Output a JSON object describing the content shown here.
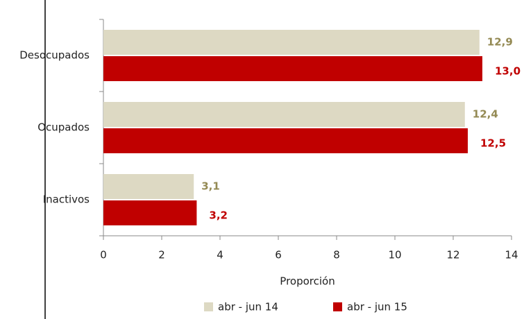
{
  "chart_data": {
    "type": "bar",
    "orientation": "horizontal",
    "categories": [
      "Desocupados",
      "Ocupados",
      "Inactivos"
    ],
    "series": [
      {
        "name": "abr - jun 14",
        "color": "#ddd9c3",
        "label_color": "#948a54",
        "values": [
          12.9,
          12.4,
          3.1
        ],
        "value_labels": [
          "12,9",
          "12,4",
          "3,1"
        ]
      },
      {
        "name": "abr - jun 15",
        "color": "#c00000",
        "label_color": "#c00000",
        "values": [
          13.0,
          12.5,
          3.2
        ],
        "value_labels": [
          "13,0",
          "12,5",
          "3,2"
        ]
      }
    ],
    "xlabel": "Proporción",
    "xlim": [
      0,
      14
    ],
    "xticks": [
      0,
      2,
      4,
      6,
      8,
      10,
      12,
      14
    ],
    "grid": false,
    "legend": "bottom"
  }
}
